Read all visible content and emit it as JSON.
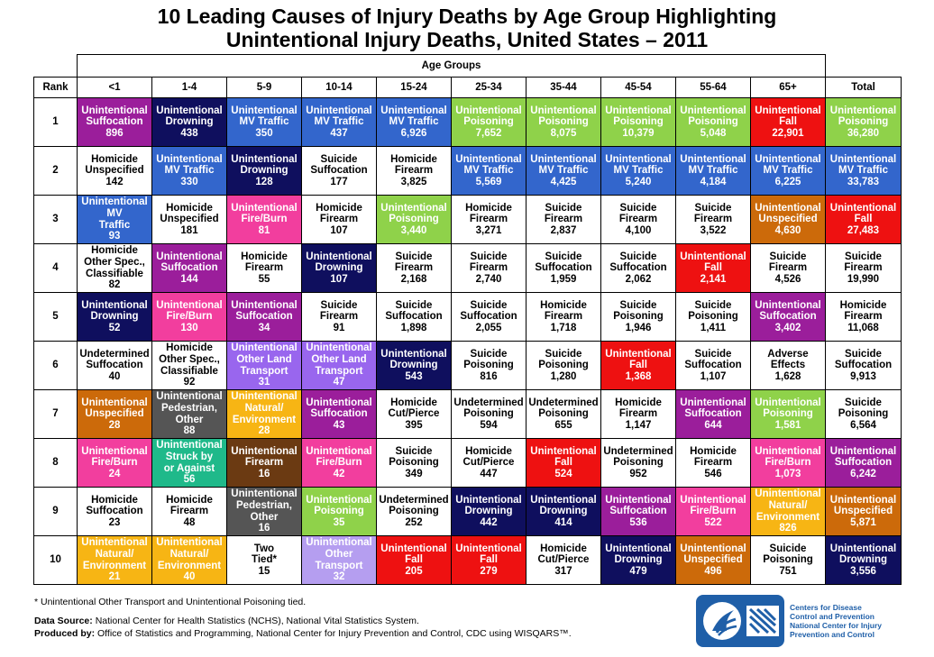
{
  "title": {
    "line1": "10 Leading Causes of Injury Deaths by Age Group Highlighting",
    "line2": "Unintentional Injury Deaths, United States – 2011"
  },
  "table": {
    "super_header": "Age Groups",
    "rank_header": "Rank",
    "age_groups": [
      "<1",
      "1-4",
      "5-9",
      "10-14",
      "15-24",
      "25-34",
      "35-44",
      "45-54",
      "55-64",
      "65+"
    ],
    "total_header": "Total",
    "rows": [
      {
        "rank": "1",
        "cells": [
          {
            "label": "Unintentional\nSuffocation",
            "count": "896",
            "bg": "#9b1e9b",
            "fg": "#ffffff"
          },
          {
            "label": "Unintentional\nDrowning",
            "count": "438",
            "bg": "#0f0f5e",
            "fg": "#ffffff"
          },
          {
            "label": "Unintentional\nMV Traffic",
            "count": "350",
            "bg": "#3366cc",
            "fg": "#ffffff"
          },
          {
            "label": "Unintentional\nMV Traffic",
            "count": "437",
            "bg": "#3366cc",
            "fg": "#ffffff"
          },
          {
            "label": "Unintentional\nMV Traffic",
            "count": "6,926",
            "bg": "#3366cc",
            "fg": "#ffffff"
          },
          {
            "label": "Unintentional\nPoisoning",
            "count": "7,652",
            "bg": "#8fd24a",
            "fg": "#ffffff"
          },
          {
            "label": "Unintentional\nPoisoning",
            "count": "8,075",
            "bg": "#8fd24a",
            "fg": "#ffffff"
          },
          {
            "label": "Unintentional\nPoisoning",
            "count": "10,379",
            "bg": "#8fd24a",
            "fg": "#ffffff"
          },
          {
            "label": "Unintentional\nPoisoning",
            "count": "5,048",
            "bg": "#8fd24a",
            "fg": "#ffffff"
          },
          {
            "label": "Unintentional\nFall",
            "count": "22,901",
            "bg": "#ee1111",
            "fg": "#ffffff"
          },
          {
            "label": "Unintentional\nPoisoning",
            "count": "36,280",
            "bg": "#8fd24a",
            "fg": "#ffffff"
          }
        ]
      },
      {
        "rank": "2",
        "cells": [
          {
            "label": "Homicide\nUnspecified",
            "count": "142",
            "bg": "#ffffff",
            "fg": "#000000"
          },
          {
            "label": "Unintentional\nMV Traffic",
            "count": "330",
            "bg": "#3366cc",
            "fg": "#ffffff"
          },
          {
            "label": "Unintentional\nDrowning",
            "count": "128",
            "bg": "#0f0f5e",
            "fg": "#ffffff"
          },
          {
            "label": "Suicide\nSuffocation",
            "count": "177",
            "bg": "#ffffff",
            "fg": "#000000"
          },
          {
            "label": "Homicide\nFirearm",
            "count": "3,825",
            "bg": "#ffffff",
            "fg": "#000000"
          },
          {
            "label": "Unintentional\nMV Traffic",
            "count": "5,569",
            "bg": "#3366cc",
            "fg": "#ffffff"
          },
          {
            "label": "Unintentional\nMV Traffic",
            "count": "4,425",
            "bg": "#3366cc",
            "fg": "#ffffff"
          },
          {
            "label": "Unintentional\nMV Traffic",
            "count": "5,240",
            "bg": "#3366cc",
            "fg": "#ffffff"
          },
          {
            "label": "Unintentional\nMV Traffic",
            "count": "4,184",
            "bg": "#3366cc",
            "fg": "#ffffff"
          },
          {
            "label": "Unintentional\nMV Traffic",
            "count": "6,225",
            "bg": "#3366cc",
            "fg": "#ffffff"
          },
          {
            "label": "Unintentional\nMV Traffic",
            "count": "33,783",
            "bg": "#3366cc",
            "fg": "#ffffff"
          }
        ]
      },
      {
        "rank": "3",
        "cells": [
          {
            "label": "Unintentional MV\nTraffic",
            "count": "93",
            "bg": "#3366cc",
            "fg": "#ffffff"
          },
          {
            "label": "Homicide\nUnspecified",
            "count": "181",
            "bg": "#ffffff",
            "fg": "#000000"
          },
          {
            "label": "Unintentional\nFire/Burn",
            "count": "81",
            "bg": "#f23e9e",
            "fg": "#ffffff"
          },
          {
            "label": "Homicide\nFirearm",
            "count": "107",
            "bg": "#ffffff",
            "fg": "#000000"
          },
          {
            "label": "Unintentional\nPoisoning",
            "count": "3,440",
            "bg": "#8fd24a",
            "fg": "#ffffff"
          },
          {
            "label": "Homicide\nFirearm",
            "count": "3,271",
            "bg": "#ffffff",
            "fg": "#000000"
          },
          {
            "label": "Suicide\nFirearm",
            "count": "2,837",
            "bg": "#ffffff",
            "fg": "#000000"
          },
          {
            "label": "Suicide\nFirearm",
            "count": "4,100",
            "bg": "#ffffff",
            "fg": "#000000"
          },
          {
            "label": "Suicide\nFirearm",
            "count": "3,522",
            "bg": "#ffffff",
            "fg": "#000000"
          },
          {
            "label": "Unintentional\nUnspecified",
            "count": "4,630",
            "bg": "#cc6a0a",
            "fg": "#ffffff"
          },
          {
            "label": "Unintentional\nFall",
            "count": "27,483",
            "bg": "#ee1111",
            "fg": "#ffffff"
          }
        ]
      },
      {
        "rank": "4",
        "cells": [
          {
            "label": "Homicide\nOther Spec.,\nClassifiable",
            "count": "82",
            "bg": "#ffffff",
            "fg": "#000000"
          },
          {
            "label": "Unintentional\nSuffocation",
            "count": "144",
            "bg": "#9b1e9b",
            "fg": "#ffffff"
          },
          {
            "label": "Homicide\nFirearm",
            "count": "55",
            "bg": "#ffffff",
            "fg": "#000000"
          },
          {
            "label": "Unintentional\nDrowning",
            "count": "107",
            "bg": "#0f0f5e",
            "fg": "#ffffff"
          },
          {
            "label": "Suicide\nFirearm",
            "count": "2,168",
            "bg": "#ffffff",
            "fg": "#000000"
          },
          {
            "label": "Suicide\nFirearm",
            "count": "2,740",
            "bg": "#ffffff",
            "fg": "#000000"
          },
          {
            "label": "Suicide\nSuffocation",
            "count": "1,959",
            "bg": "#ffffff",
            "fg": "#000000"
          },
          {
            "label": "Suicide\nSuffocation",
            "count": "2,062",
            "bg": "#ffffff",
            "fg": "#000000"
          },
          {
            "label": "Unintentional\nFall",
            "count": "2,141",
            "bg": "#ee1111",
            "fg": "#ffffff"
          },
          {
            "label": "Suicide\nFirearm",
            "count": "4,526",
            "bg": "#ffffff",
            "fg": "#000000"
          },
          {
            "label": "Suicide\nFirearm",
            "count": "19,990",
            "bg": "#ffffff",
            "fg": "#000000"
          }
        ]
      },
      {
        "rank": "5",
        "cells": [
          {
            "label": "Unintentional\nDrowning",
            "count": "52",
            "bg": "#0f0f5e",
            "fg": "#ffffff"
          },
          {
            "label": "Unintentional\nFire/Burn",
            "count": "130",
            "bg": "#f23e9e",
            "fg": "#ffffff"
          },
          {
            "label": "Unintentional\nSuffocation",
            "count": "34",
            "bg": "#9b1e9b",
            "fg": "#ffffff"
          },
          {
            "label": "Suicide\nFirearm",
            "count": "91",
            "bg": "#ffffff",
            "fg": "#000000"
          },
          {
            "label": "Suicide\nSuffocation",
            "count": "1,898",
            "bg": "#ffffff",
            "fg": "#000000"
          },
          {
            "label": "Suicide\nSuffocation",
            "count": "2,055",
            "bg": "#ffffff",
            "fg": "#000000"
          },
          {
            "label": "Homicide\nFirearm",
            "count": "1,718",
            "bg": "#ffffff",
            "fg": "#000000"
          },
          {
            "label": "Suicide\nPoisoning",
            "count": "1,946",
            "bg": "#ffffff",
            "fg": "#000000"
          },
          {
            "label": "Suicide\nPoisoning",
            "count": "1,411",
            "bg": "#ffffff",
            "fg": "#000000"
          },
          {
            "label": "Unintentional\nSuffocation",
            "count": "3,402",
            "bg": "#9b1e9b",
            "fg": "#ffffff"
          },
          {
            "label": "Homicide\nFirearm",
            "count": "11,068",
            "bg": "#ffffff",
            "fg": "#000000"
          }
        ]
      },
      {
        "rank": "6",
        "cells": [
          {
            "label": "Undetermined\nSuffocation",
            "count": "40",
            "bg": "#ffffff",
            "fg": "#000000"
          },
          {
            "label": "Homicide\nOther Spec.,\nClassifiable",
            "count": "92",
            "bg": "#ffffff",
            "fg": "#000000"
          },
          {
            "label": "Unintentional\nOther Land\nTransport",
            "count": "31",
            "bg": "#9966ee",
            "fg": "#ffffff"
          },
          {
            "label": "Unintentional\nOther Land\nTransport",
            "count": "47",
            "bg": "#9966ee",
            "fg": "#ffffff"
          },
          {
            "label": "Unintentional\nDrowning",
            "count": "543",
            "bg": "#0f0f5e",
            "fg": "#ffffff"
          },
          {
            "label": "Suicide\nPoisoning",
            "count": "816",
            "bg": "#ffffff",
            "fg": "#000000"
          },
          {
            "label": "Suicide\nPoisoning",
            "count": "1,280",
            "bg": "#ffffff",
            "fg": "#000000"
          },
          {
            "label": "Unintentional\nFall",
            "count": "1,368",
            "bg": "#ee1111",
            "fg": "#ffffff"
          },
          {
            "label": "Suicide\nSuffocation",
            "count": "1,107",
            "bg": "#ffffff",
            "fg": "#000000"
          },
          {
            "label": "Adverse\nEffects",
            "count": "1,628",
            "bg": "#ffffff",
            "fg": "#000000"
          },
          {
            "label": "Suicide\nSuffocation",
            "count": "9,913",
            "bg": "#ffffff",
            "fg": "#000000"
          }
        ]
      },
      {
        "rank": "7",
        "cells": [
          {
            "label": "Unintentional\nUnspecified",
            "count": "28",
            "bg": "#cc6a0a",
            "fg": "#ffffff"
          },
          {
            "label": "Unintentional\nPedestrian,\nOther",
            "count": "88",
            "bg": "#555555",
            "fg": "#ffffff"
          },
          {
            "label": "Unintentional\nNatural/\nEnvironment",
            "count": "28",
            "bg": "#f7b514",
            "fg": "#ffffff"
          },
          {
            "label": "Unintentional\nSuffocation",
            "count": "43",
            "bg": "#9b1e9b",
            "fg": "#ffffff"
          },
          {
            "label": "Homicide\nCut/Pierce",
            "count": "395",
            "bg": "#ffffff",
            "fg": "#000000"
          },
          {
            "label": "Undetermined\nPoisoning",
            "count": "594",
            "bg": "#ffffff",
            "fg": "#000000"
          },
          {
            "label": "Undetermined\nPoisoning",
            "count": "655",
            "bg": "#ffffff",
            "fg": "#000000"
          },
          {
            "label": "Homicide\nFirearm",
            "count": "1,147",
            "bg": "#ffffff",
            "fg": "#000000"
          },
          {
            "label": "Unintentional\nSuffocation",
            "count": "644",
            "bg": "#9b1e9b",
            "fg": "#ffffff"
          },
          {
            "label": "Unintentional\nPoisoning",
            "count": "1,581",
            "bg": "#8fd24a",
            "fg": "#ffffff"
          },
          {
            "label": "Suicide\nPoisoning",
            "count": "6,564",
            "bg": "#ffffff",
            "fg": "#000000"
          }
        ]
      },
      {
        "rank": "8",
        "cells": [
          {
            "label": "Unintentional\nFire/Burn",
            "count": "24",
            "bg": "#f23e9e",
            "fg": "#ffffff"
          },
          {
            "label": "Unintentional\nStruck by\nor Against",
            "count": "56",
            "bg": "#1fb98a",
            "fg": "#ffffff"
          },
          {
            "label": "Unintentional\nFirearm",
            "count": "16",
            "bg": "#6b3a12",
            "fg": "#ffffff"
          },
          {
            "label": "Unintentional\nFire/Burn",
            "count": "42",
            "bg": "#f23e9e",
            "fg": "#ffffff"
          },
          {
            "label": "Suicide\nPoisoning",
            "count": "349",
            "bg": "#ffffff",
            "fg": "#000000"
          },
          {
            "label": "Homicide\nCut/Pierce",
            "count": "447",
            "bg": "#ffffff",
            "fg": "#000000"
          },
          {
            "label": "Unintentional\nFall",
            "count": "524",
            "bg": "#ee1111",
            "fg": "#ffffff"
          },
          {
            "label": "Undetermined\nPoisoning",
            "count": "952",
            "bg": "#ffffff",
            "fg": "#000000"
          },
          {
            "label": "Homicide\nFirearm",
            "count": "546",
            "bg": "#ffffff",
            "fg": "#000000"
          },
          {
            "label": "Unintentional\nFire/Burn",
            "count": "1,073",
            "bg": "#f23e9e",
            "fg": "#ffffff"
          },
          {
            "label": "Unintentional\nSuffocation",
            "count": "6,242",
            "bg": "#9b1e9b",
            "fg": "#ffffff"
          }
        ]
      },
      {
        "rank": "9",
        "cells": [
          {
            "label": "Homicide\nSuffocation",
            "count": "23",
            "bg": "#ffffff",
            "fg": "#000000"
          },
          {
            "label": "Homicide\nFirearm",
            "count": "48",
            "bg": "#ffffff",
            "fg": "#000000"
          },
          {
            "label": "Unintentional\nPedestrian,\nOther",
            "count": "16",
            "bg": "#555555",
            "fg": "#ffffff"
          },
          {
            "label": "Unintentional\nPoisoning",
            "count": "35",
            "bg": "#8fd24a",
            "fg": "#ffffff"
          },
          {
            "label": "Undetermined\nPoisoning",
            "count": "252",
            "bg": "#ffffff",
            "fg": "#000000"
          },
          {
            "label": "Unintentional\nDrowning",
            "count": "442",
            "bg": "#0f0f5e",
            "fg": "#ffffff"
          },
          {
            "label": "Unintentional\nDrowning",
            "count": "414",
            "bg": "#0f0f5e",
            "fg": "#ffffff"
          },
          {
            "label": "Unintentional\nSuffocation",
            "count": "536",
            "bg": "#9b1e9b",
            "fg": "#ffffff"
          },
          {
            "label": "Unintentional\nFire/Burn",
            "count": "522",
            "bg": "#f23e9e",
            "fg": "#ffffff"
          },
          {
            "label": "Unintentional\nNatural/\nEnvironment",
            "count": "826",
            "bg": "#f7b514",
            "fg": "#ffffff"
          },
          {
            "label": "Unintentional\nUnspecified",
            "count": "5,871",
            "bg": "#cc6a0a",
            "fg": "#ffffff"
          }
        ]
      },
      {
        "rank": "10",
        "cells": [
          {
            "label": "Unintentional\nNatural/\nEnvironment",
            "count": "21",
            "bg": "#f7b514",
            "fg": "#ffffff"
          },
          {
            "label": "Unintentional\nNatural/\nEnvironment",
            "count": "40",
            "bg": "#f7b514",
            "fg": "#ffffff"
          },
          {
            "label": "Two\nTied*",
            "count": "15",
            "bg": "#ffffff",
            "fg": "#000000"
          },
          {
            "label": "Unintentional\nOther\nTransport",
            "count": "32",
            "bg": "#b59ef0",
            "fg": "#ffffff"
          },
          {
            "label": "Unintentional\nFall",
            "count": "205",
            "bg": "#ee1111",
            "fg": "#ffffff"
          },
          {
            "label": "Unintentional\nFall",
            "count": "279",
            "bg": "#ee1111",
            "fg": "#ffffff"
          },
          {
            "label": "Homicide\nCut/Pierce",
            "count": "317",
            "bg": "#ffffff",
            "fg": "#000000"
          },
          {
            "label": "Unintentional\nDrowning",
            "count": "479",
            "bg": "#0f0f5e",
            "fg": "#ffffff"
          },
          {
            "label": "Unintentional\nUnspecified",
            "count": "496",
            "bg": "#cc6a0a",
            "fg": "#ffffff"
          },
          {
            "label": "Suicide\nPoisoning",
            "count": "751",
            "bg": "#ffffff",
            "fg": "#000000"
          },
          {
            "label": "Unintentional\nDrowning",
            "count": "3,556",
            "bg": "#0f0f5e",
            "fg": "#ffffff"
          }
        ]
      }
    ]
  },
  "footer": {
    "footnote": "* Unintentional Other Transport and Unintentional Poisoning tied.",
    "source_label": "Data Source:",
    "source_text": "National Center for Health Statistics (NCHS), National Vital Statistics System.",
    "producer_label": "Produced by:",
    "producer_text": "Office of Statistics and Programming, National Center for Injury Prevention and Control, CDC using WISQARS™."
  },
  "branding": {
    "logo_icon": "hhs-eagle-logo-icon",
    "cdc_line1": "Centers for Disease",
    "cdc_line2": "Control and Prevention",
    "cdc_line3": "National Center for Injury",
    "cdc_line4": "Prevention and Control",
    "brand_color": "#1f5fa8"
  }
}
